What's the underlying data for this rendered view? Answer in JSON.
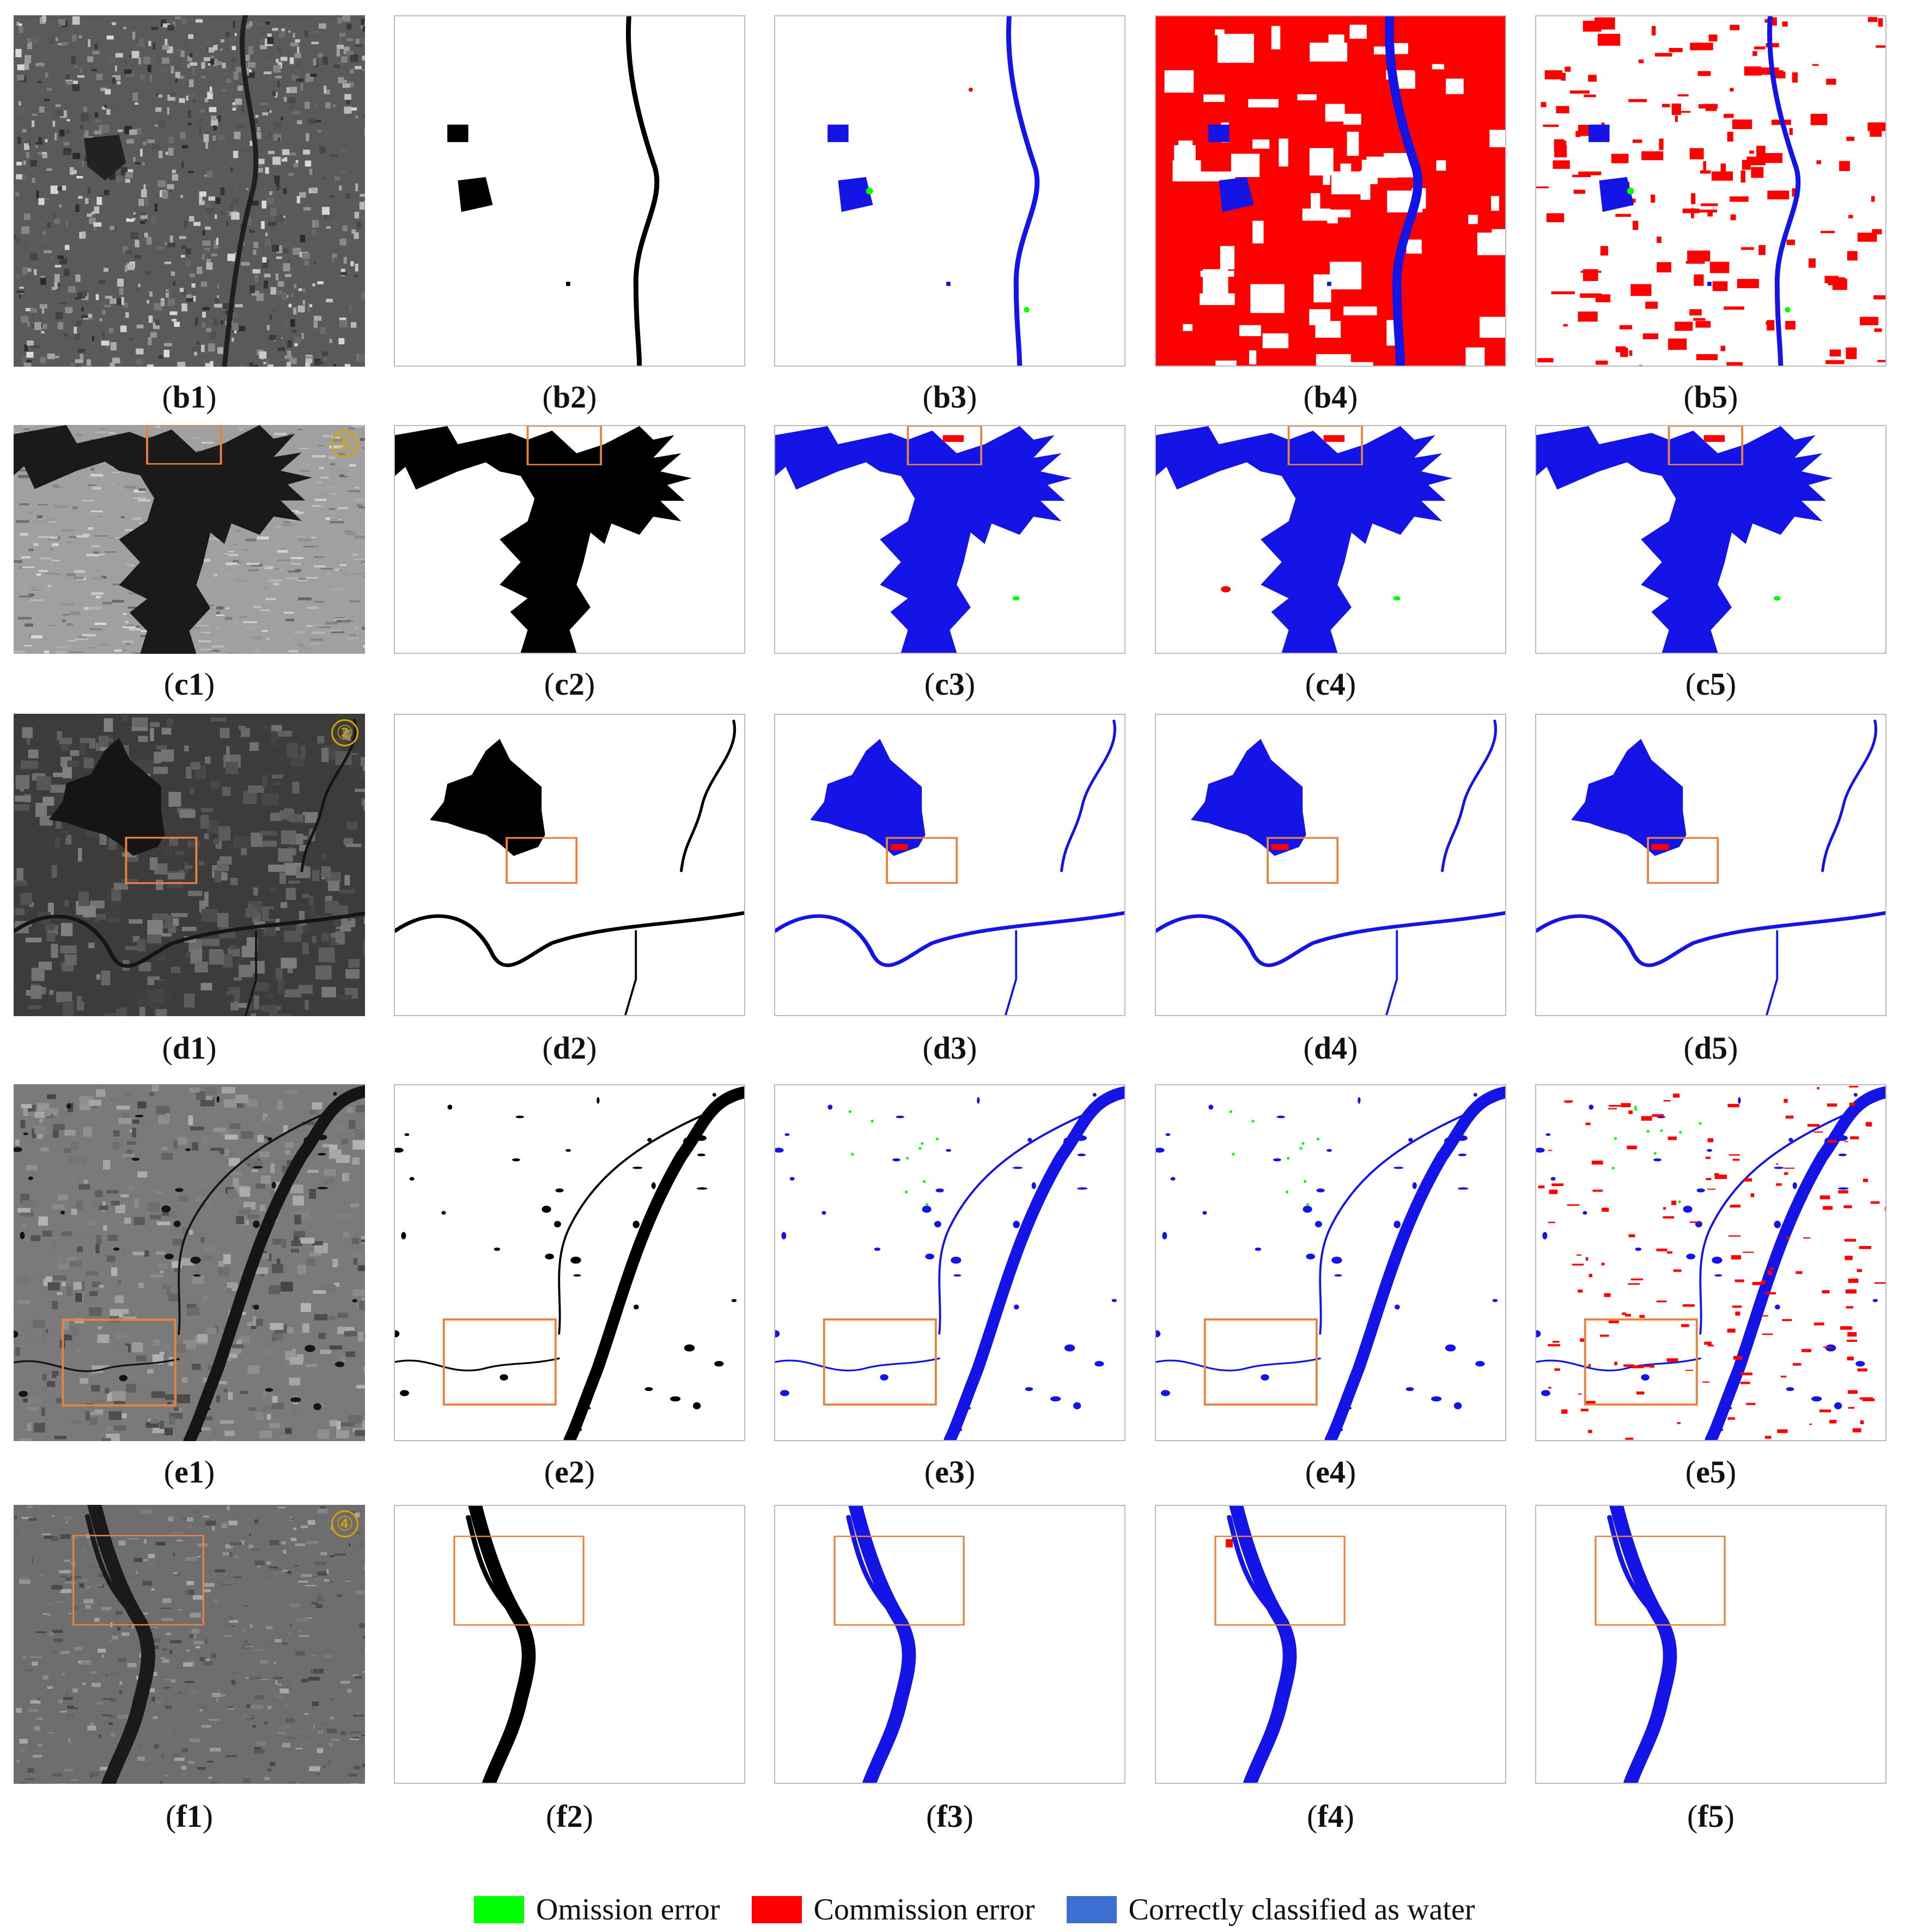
{
  "colors": {
    "omission": "#00ff00",
    "commission": "#ff0000",
    "correct": "#3d6fd1",
    "water_pred": "#1414e6",
    "roi_box": "#e8823d",
    "marker": "#d9a400"
  },
  "rows": [
    {
      "id": "b",
      "labels": [
        "b1",
        "b2",
        "b3",
        "b4",
        "b5"
      ]
    },
    {
      "id": "c",
      "labels": [
        "c1",
        "c2",
        "c3",
        "c4",
        "c5"
      ],
      "marker": "①"
    },
    {
      "id": "d",
      "labels": [
        "d1",
        "d2",
        "d3",
        "d4",
        "d5"
      ],
      "marker": "②"
    },
    {
      "id": "e",
      "labels": [
        "e1",
        "e2",
        "e3",
        "e4",
        "e5"
      ]
    },
    {
      "id": "f",
      "labels": [
        "f1",
        "f2",
        "f3",
        "f4",
        "f5"
      ],
      "marker": "④"
    }
  ],
  "legend": [
    {
      "label": "Omission error",
      "color": "#00ff00"
    },
    {
      "label": "Commission error",
      "color": "#ff0000"
    },
    {
      "label": "Correctly classified as water",
      "color": "#3d6fd1"
    }
  ]
}
